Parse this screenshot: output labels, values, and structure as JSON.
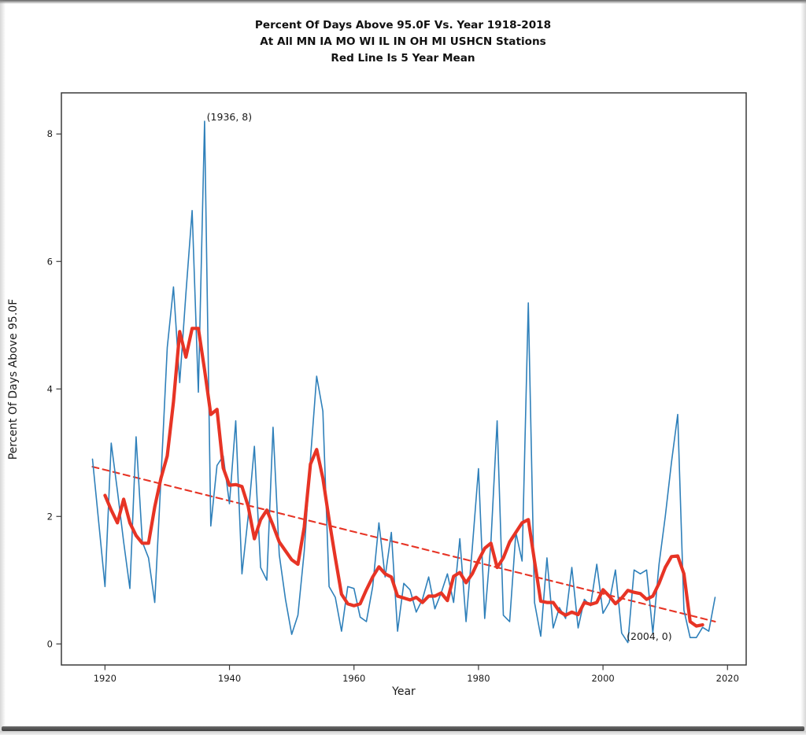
{
  "figure": {
    "title_lines": [
      "Percent Of Days Above 95.0F Vs. Year 1918-2018",
      "At All MN IA MO WI IL IN OH MI USHCN Stations",
      "Red Line Is 5 Year Mean"
    ],
    "xlabel": "Year",
    "ylabel": "Percent Of Days Above 95.0F"
  },
  "chart_data": {
    "type": "line",
    "title": "Percent Of Days Above 95.0F Vs. Year 1918-2018 At All MN IA MO WI IL IN OH MI USHCN Stations, Red Line Is 5 Year Mean",
    "xlabel": "Year",
    "ylabel": "Percent Of Days Above 95.0F",
    "xlim": [
      1913,
      2023
    ],
    "ylim": [
      -0.33,
      8.645
    ],
    "grid": false,
    "x_ticks": [
      1920,
      1940,
      1960,
      1980,
      2000,
      2020
    ],
    "y_ticks": [
      0,
      2,
      4,
      6,
      8
    ],
    "colors": {
      "annual": "#2f80ba",
      "mean": "#e73425",
      "trend": "#e73425",
      "spine": "#3a3a3a",
      "text": "#1a1a1a"
    },
    "series": [
      {
        "name": "annual-percent-of-days",
        "color": "#2f80ba",
        "style": "solid",
        "width": 1.6,
        "x_start": 1918,
        "values": [
          2.9,
          1.9,
          0.9,
          3.15,
          2.4,
          1.6,
          0.87,
          3.25,
          1.6,
          1.35,
          0.65,
          2.6,
          4.65,
          5.6,
          4.1,
          5.5,
          6.8,
          3.95,
          8.2,
          1.85,
          2.8,
          2.95,
          2.2,
          3.5,
          1.1,
          2.0,
          3.1,
          1.2,
          1.0,
          3.4,
          1.4,
          0.7,
          0.15,
          0.45,
          1.45,
          2.9,
          4.2,
          3.65,
          0.9,
          0.73,
          0.2,
          0.9,
          0.87,
          0.42,
          0.35,
          0.9,
          1.9,
          1.05,
          1.75,
          0.2,
          0.95,
          0.85,
          0.5,
          0.7,
          1.05,
          0.55,
          0.8,
          1.1,
          0.65,
          1.65,
          0.35,
          1.5,
          2.75,
          0.4,
          1.6,
          3.5,
          0.45,
          0.35,
          1.75,
          1.3,
          5.35,
          0.65,
          0.12,
          1.35,
          0.25,
          0.57,
          0.4,
          1.2,
          0.25,
          0.7,
          0.6,
          1.25,
          0.48,
          0.65,
          1.16,
          0.17,
          0.02,
          1.16,
          1.1,
          1.16,
          0.17,
          1.25,
          2.0,
          2.85,
          3.6,
          0.53,
          0.1,
          0.1,
          0.26,
          0.2,
          0.73
        ]
      },
      {
        "name": "5-year-mean",
        "color": "#e73425",
        "style": "solid",
        "width": 4.2,
        "x_start": 1920,
        "values": [
          2.33,
          2.1,
          1.9,
          2.27,
          1.9,
          1.7,
          1.58,
          1.58,
          2.15,
          2.6,
          2.95,
          3.8,
          4.9,
          4.5,
          4.95,
          4.95,
          4.3,
          3.6,
          3.68,
          2.76,
          2.49,
          2.5,
          2.47,
          2.16,
          1.65,
          1.95,
          2.1,
          1.86,
          1.6,
          1.46,
          1.32,
          1.25,
          1.83,
          2.82,
          3.05,
          2.6,
          1.95,
          1.35,
          0.78,
          0.63,
          0.6,
          0.63,
          0.85,
          1.05,
          1.21,
          1.1,
          1.05,
          0.75,
          0.72,
          0.69,
          0.73,
          0.65,
          0.75,
          0.75,
          0.8,
          0.68,
          1.06,
          1.12,
          0.96,
          1.1,
          1.31,
          1.5,
          1.58,
          1.2,
          1.35,
          1.6,
          1.75,
          1.9,
          1.95,
          1.3,
          0.67,
          0.65,
          0.65,
          0.51,
          0.45,
          0.5,
          0.46,
          0.65,
          0.62,
          0.65,
          0.85,
          0.75,
          0.63,
          0.72,
          0.84,
          0.81,
          0.79,
          0.7,
          0.75,
          0.95,
          1.2,
          1.37,
          1.38,
          1.1,
          0.35,
          0.28,
          0.3
        ]
      },
      {
        "name": "linear-trend",
        "color": "#e73425",
        "style": "dashed",
        "width": 2.1,
        "x": [
          1918,
          2018
        ],
        "values": [
          2.78,
          0.35
        ]
      }
    ],
    "annotations": [
      {
        "text": "(1936, 8)",
        "x": 1936.35,
        "y": 8.27
      },
      {
        "text": "(2004, 0)",
        "x": 2003.8,
        "y": 0.12
      }
    ]
  }
}
